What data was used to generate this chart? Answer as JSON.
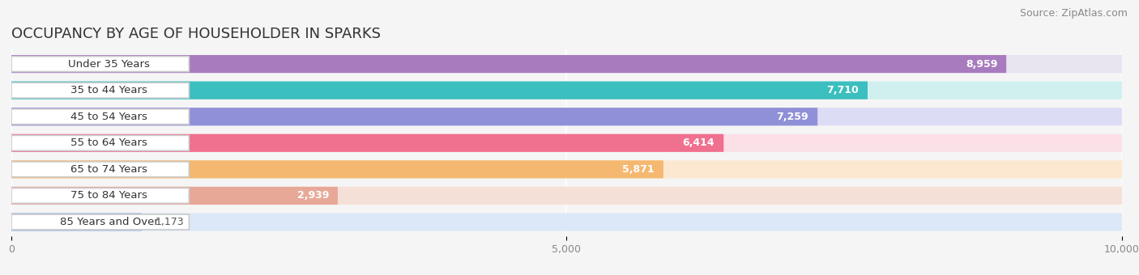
{
  "title": "OCCUPANCY BY AGE OF HOUSEHOLDER IN SPARKS",
  "source": "Source: ZipAtlas.com",
  "categories": [
    "Under 35 Years",
    "35 to 44 Years",
    "45 to 54 Years",
    "55 to 64 Years",
    "65 to 74 Years",
    "75 to 84 Years",
    "85 Years and Over"
  ],
  "values": [
    8959,
    7710,
    7259,
    6414,
    5871,
    2939,
    1173
  ],
  "bar_colors": [
    "#a87bbf",
    "#3bbfbf",
    "#9090d8",
    "#f07090",
    "#f5b870",
    "#e8a898",
    "#a0b8e8"
  ],
  "bar_bg_colors": [
    "#e8e4f0",
    "#d0f0f0",
    "#dcdcf5",
    "#fce0e8",
    "#fce8d0",
    "#f5e0d8",
    "#dce8f8"
  ],
  "xlim": [
    0,
    10000
  ],
  "xticks": [
    0,
    5000,
    10000
  ],
  "background_color": "#f5f5f5",
  "bar_height": 0.68,
  "title_fontsize": 13,
  "source_fontsize": 9,
  "label_fontsize": 9.5,
  "value_fontsize": 9
}
